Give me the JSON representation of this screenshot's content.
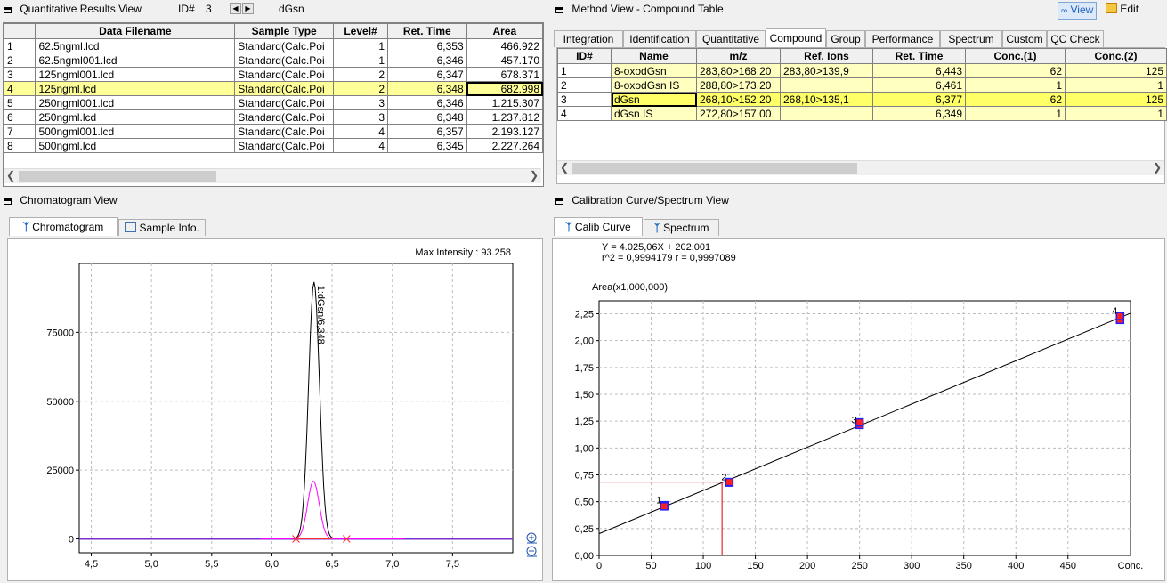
{
  "results": {
    "title": "Quantitative Results View",
    "id_label": "ID#",
    "id_value": "3",
    "compound": "dGsn",
    "columns": [
      "Data Filename",
      "Sample Type",
      "Level#",
      "Ret. Time",
      "Area"
    ],
    "rows": [
      {
        "id": "1",
        "file": "62.5ngml.lcd",
        "type": "Standard(Calc.Poi",
        "level": "1",
        "rt": "6,353",
        "area": "466.922"
      },
      {
        "id": "2",
        "file": "62.5ngml001.lcd",
        "type": "Standard(Calc.Poi",
        "level": "1",
        "rt": "6,346",
        "area": "457.170"
      },
      {
        "id": "3",
        "file": "125ngml001.lcd",
        "type": "Standard(Calc.Poi",
        "level": "2",
        "rt": "6,347",
        "area": "678.371"
      },
      {
        "id": "4",
        "file": "125ngml.lcd",
        "type": "Standard(Calc.Poi",
        "level": "2",
        "rt": "6,348",
        "area": "682.998"
      },
      {
        "id": "5",
        "file": "250ngml001.lcd",
        "type": "Standard(Calc.Poi",
        "level": "3",
        "rt": "6,346",
        "area": "1.215.307"
      },
      {
        "id": "6",
        "file": "250ngml.lcd",
        "type": "Standard(Calc.Poi",
        "level": "3",
        "rt": "6,348",
        "area": "1.237.812"
      },
      {
        "id": "7",
        "file": "500ngml001.lcd",
        "type": "Standard(Calc.Poi",
        "level": "4",
        "rt": "6,357",
        "area": "2.193.127"
      },
      {
        "id": "8",
        "file": "500ngml.lcd",
        "type": "Standard(Calc.Poi",
        "level": "4",
        "rt": "6,345",
        "area": "2.227.264"
      }
    ],
    "selected_index": 3
  },
  "method": {
    "title": "Method View - Compound Table",
    "view_label": "View",
    "edit_label": "Edit",
    "tabs": [
      "Integration",
      "Identification",
      "Quantitative",
      "Compound",
      "Group",
      "Performance",
      "Spectrum",
      "Custom",
      "QC Check"
    ],
    "active_tab": "Compound",
    "columns": [
      "ID#",
      "Name",
      "m/z",
      "Ref. Ions",
      "Ret. Time",
      "Conc.(1)",
      "Conc.(2)"
    ],
    "rows": [
      {
        "id": "1",
        "name": "8-oxodGsn",
        "mz": "283,80>168,20",
        "ref": "283,80>139,9",
        "rt": "6,443",
        "c1": "62",
        "c2": "125"
      },
      {
        "id": "2",
        "name": "8-oxodGsn IS",
        "mz": "288,80>173,20",
        "ref": "",
        "rt": "6,461",
        "c1": "1",
        "c2": "1"
      },
      {
        "id": "3",
        "name": "dGsn",
        "mz": "268,10>152,20",
        "ref": "268,10>135,1",
        "rt": "6,377",
        "c1": "62",
        "c2": "125"
      },
      {
        "id": "4",
        "name": "dGsn IS",
        "mz": "272,80>157,00",
        "ref": "",
        "rt": "6,349",
        "c1": "1",
        "c2": "1"
      }
    ],
    "selected_index": 2
  },
  "chromatogram": {
    "title": "Chromatogram View",
    "tabs": [
      "Chromatogram",
      "Sample Info."
    ],
    "max_intensity_label": "Max Intensity :",
    "max_intensity_value": "93.258",
    "peak_label": "1:dGsn/6,348",
    "y_ticks": [
      "75000",
      "50000",
      "25000",
      "0"
    ],
    "x_ticks": [
      "4,5",
      "5,0",
      "5,5",
      "6,0",
      "6,5",
      "7,0",
      "7,5"
    ],
    "zoom_in_icon": "zoom-in-icon",
    "zoom_out_icon": "zoom-out-icon"
  },
  "calibration": {
    "title": "Calibration Curve/Spectrum View",
    "tabs": [
      "Calib Curve",
      "Spectrum"
    ],
    "equation": "Y = 4.025,06X + 202.001",
    "r2": "r^2 = 0,9994179  r = 0,9997089",
    "y_axis_label": "Area(x1,000,000)",
    "x_axis_label": "Conc.",
    "y_ticks": [
      "0,00",
      "0,25",
      "0,50",
      "0,75",
      "1,00",
      "1,25",
      "1,50",
      "1,75",
      "2,00",
      "2,25"
    ],
    "x_ticks": [
      "0",
      "50",
      "100",
      "150",
      "200",
      "250",
      "300",
      "350",
      "400",
      "450"
    ],
    "point_labels": [
      "1",
      "2",
      "3",
      "4"
    ]
  },
  "chart_data": [
    {
      "type": "line",
      "x": [
        4.4,
        6.0,
        6.2,
        6.28,
        6.33,
        6.35,
        6.37,
        6.42,
        6.5,
        6.6,
        7.0,
        8.0
      ],
      "series": [
        {
          "name": "1:dGsn/6,348",
          "color": "#000000",
          "values": [
            0,
            0,
            2000,
            40000,
            85000,
            93258,
            85000,
            40000,
            6000,
            0,
            0,
            0
          ]
        },
        {
          "color": "#ff00ff",
          "values": [
            0,
            0,
            1000,
            10000,
            19000,
            21000,
            19000,
            10000,
            2000,
            0,
            0,
            0
          ]
        }
      ],
      "ylim": [
        -5000,
        100000
      ],
      "xlim": [
        4.4,
        8.0
      ]
    },
    {
      "type": "scatter",
      "x": [
        62.5,
        62.5,
        125,
        125,
        250,
        250,
        500,
        500
      ],
      "series": [
        {
          "values": [
            0.466922,
            0.45717,
            0.678371,
            0.682998,
            1.215307,
            1.237812,
            2.193127,
            2.227264
          ]
        }
      ],
      "fit": {
        "slope": 4025.06,
        "intercept": 202001
      },
      "xlim": [
        0,
        510
      ],
      "ylim": [
        0,
        2.37
      ],
      "ylabel": "Area(x1,000,000)",
      "xlabel": "Conc."
    }
  ]
}
